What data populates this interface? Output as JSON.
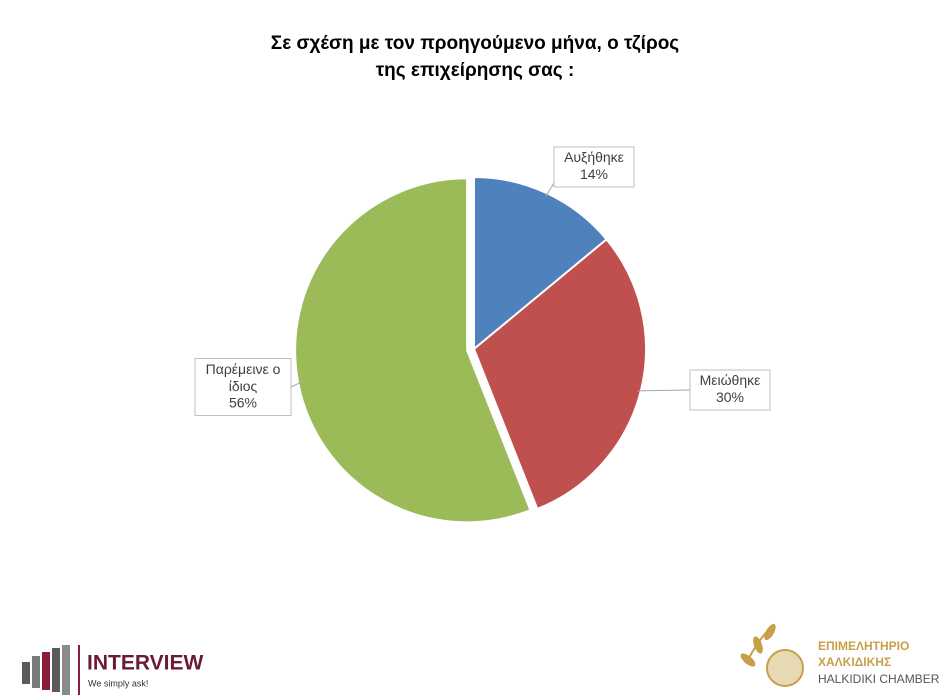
{
  "chart_data": {
    "type": "pie",
    "title": [
      "Σε σχέση με τον προηγούμενο μήνα, ο τζίρος",
      "της επιχείρησης σας :"
    ],
    "categories": [
      "Αυξήθηκε",
      "Μειώθηκε",
      "Παρέμεινε ο ίδιος"
    ],
    "values": [
      14,
      30,
      56
    ],
    "value_labels": [
      "14%",
      "30%",
      "56%"
    ],
    "colors": [
      "#4f81bd",
      "#c0504d",
      "#9bbb59"
    ]
  },
  "logos": {
    "left": {
      "name": "INTERVIEW",
      "tagline": "We simply ask!"
    },
    "right": {
      "line1": "ΕΠΙΜΕΛΗΤΗΡΙΟ",
      "line2": "ΧΑΛΚΙΔΙΚΗΣ",
      "line3": "HALKIDIKI CHAMBER"
    }
  }
}
